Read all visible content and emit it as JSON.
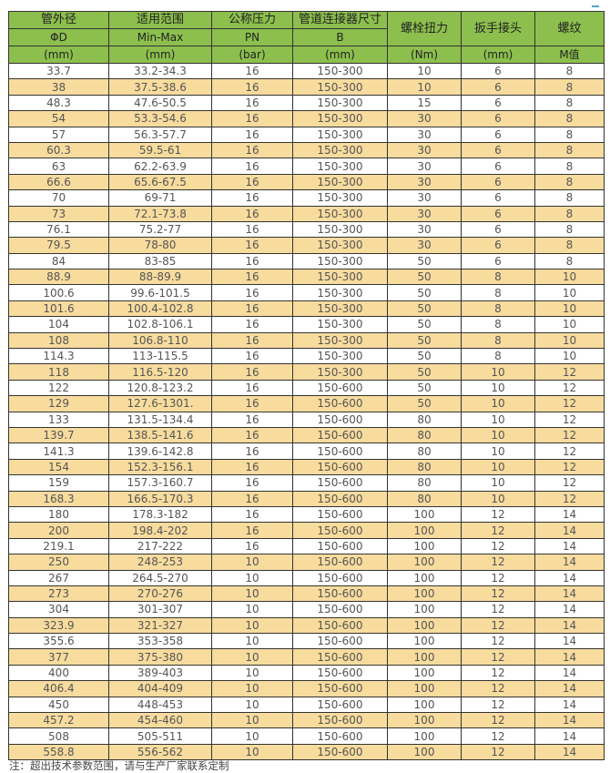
{
  "header": {
    "row1": [
      "管外径",
      "适用范围",
      "公称压力",
      "管道连接器尺寸",
      "螺栓扭力",
      "扳手接头",
      "螺纹"
    ],
    "row2": [
      "ΦD",
      "Min-Max",
      "PN",
      "B"
    ],
    "row3": [
      "(mm)",
      "(mm)",
      "(bar)",
      "(mm)",
      "(Nm)",
      "(mm)",
      "M值"
    ]
  },
  "colors": {
    "header_green": "#8cbf4d",
    "alt_row_yellow": "#f8dc9e"
  },
  "rows": [
    [
      "33.7",
      "33.2-34.3",
      "16",
      "150-300",
      "10",
      "6",
      "8"
    ],
    [
      "38",
      "37.5-38.6",
      "16",
      "150-300",
      "10",
      "6",
      "8"
    ],
    [
      "48.3",
      "47.6-50.5",
      "16",
      "150-300",
      "15",
      "6",
      "8"
    ],
    [
      "54",
      "53.3-54.6",
      "16",
      "150-300",
      "30",
      "6",
      "8"
    ],
    [
      "57",
      "56.3-57.7",
      "16",
      "150-300",
      "30",
      "6",
      "8"
    ],
    [
      "60.3",
      "59.5-61",
      "16",
      "150-300",
      "30",
      "6",
      "8"
    ],
    [
      "63",
      "62.2-63.9",
      "16",
      "150-300",
      "30",
      "6",
      "8"
    ],
    [
      "66.6",
      "65.6-67.5",
      "16",
      "150-300",
      "30",
      "6",
      "8"
    ],
    [
      "70",
      "69-71",
      "16",
      "150-300",
      "30",
      "6",
      "8"
    ],
    [
      "73",
      "72.1-73.8",
      "16",
      "150-300",
      "30",
      "6",
      "8"
    ],
    [
      "76.1",
      "75.2-77",
      "16",
      "150-300",
      "30",
      "6",
      "8"
    ],
    [
      "79.5",
      "78-80",
      "16",
      "150-300",
      "30",
      "6",
      "8"
    ],
    [
      "84",
      "83-85",
      "16",
      "150-300",
      "50",
      "6",
      "8"
    ],
    [
      "88.9",
      "88-89.9",
      "16",
      "150-300",
      "50",
      "8",
      "10"
    ],
    [
      "100.6",
      "99.6-101.5",
      "16",
      "150-300",
      "50",
      "8",
      "10"
    ],
    [
      "101.6",
      "100.4-102.8",
      "16",
      "150-300",
      "50",
      "8",
      "10"
    ],
    [
      "104",
      "102.8-106.1",
      "16",
      "150-300",
      "50",
      "8",
      "10"
    ],
    [
      "108",
      "106.8-110",
      "16",
      "150-300",
      "50",
      "8",
      "10"
    ],
    [
      "114.3",
      "113-115.5",
      "16",
      "150-300",
      "50",
      "8",
      "10"
    ],
    [
      "118",
      "116.5-120",
      "16",
      "150-300",
      "50",
      "10",
      "12"
    ],
    [
      "122",
      "120.8-123.2",
      "16",
      "150-600",
      "50",
      "10",
      "12"
    ],
    [
      "129",
      "127.6-1301.",
      "16",
      "150-600",
      "50",
      "10",
      "12"
    ],
    [
      "133",
      "131.5-134.4",
      "16",
      "150-600",
      "80",
      "10",
      "12"
    ],
    [
      "139.7",
      "138.5-141.6",
      "16",
      "150-600",
      "80",
      "10",
      "12"
    ],
    [
      "141.3",
      "139.6-142.8",
      "16",
      "150-600",
      "80",
      "10",
      "12"
    ],
    [
      "154",
      "152.3-156.1",
      "16",
      "150-600",
      "80",
      "10",
      "12"
    ],
    [
      "159",
      "157.3-160.7",
      "16",
      "150-600",
      "80",
      "10",
      "12"
    ],
    [
      "168.3",
      "166.5-170.3",
      "16",
      "150-600",
      "80",
      "10",
      "12"
    ],
    [
      "180",
      "178.3-182",
      "16",
      "150-600",
      "100",
      "12",
      "14"
    ],
    [
      "200",
      "198.4-202",
      "16",
      "150-600",
      "100",
      "12",
      "14"
    ],
    [
      "219.1",
      "217-222",
      "16",
      "150-600",
      "100",
      "12",
      "14"
    ],
    [
      "250",
      "248-253",
      "10",
      "150-600",
      "100",
      "12",
      "14"
    ],
    [
      "267",
      "264.5-270",
      "10",
      "150-600",
      "100",
      "12",
      "14"
    ],
    [
      "273",
      "270-276",
      "10",
      "150-600",
      "100",
      "12",
      "14"
    ],
    [
      "304",
      "301-307",
      "10",
      "150-600",
      "100",
      "12",
      "14"
    ],
    [
      "323.9",
      "321-327",
      "10",
      "150-600",
      "100",
      "12",
      "14"
    ],
    [
      "355.6",
      "353-358",
      "10",
      "150-600",
      "100",
      "12",
      "14"
    ],
    [
      "377",
      "375-380",
      "10",
      "150-600",
      "100",
      "12",
      "14"
    ],
    [
      "400",
      "389-403",
      "10",
      "150-600",
      "100",
      "12",
      "14"
    ],
    [
      "406.4",
      "404-409",
      "10",
      "150-600",
      "100",
      "12",
      "14"
    ],
    [
      "450",
      "448-453",
      "10",
      "150-600",
      "100",
      "12",
      "14"
    ],
    [
      "457.2",
      "454-460",
      "10",
      "150-600",
      "100",
      "12",
      "14"
    ],
    [
      "508",
      "505-511",
      "10",
      "150-600",
      "100",
      "12",
      "14"
    ],
    [
      "558.8",
      "556-562",
      "10",
      "150-600",
      "100",
      "12",
      "14"
    ]
  ],
  "note": "注：超出技术参数范围，请与生产厂家联系定制"
}
